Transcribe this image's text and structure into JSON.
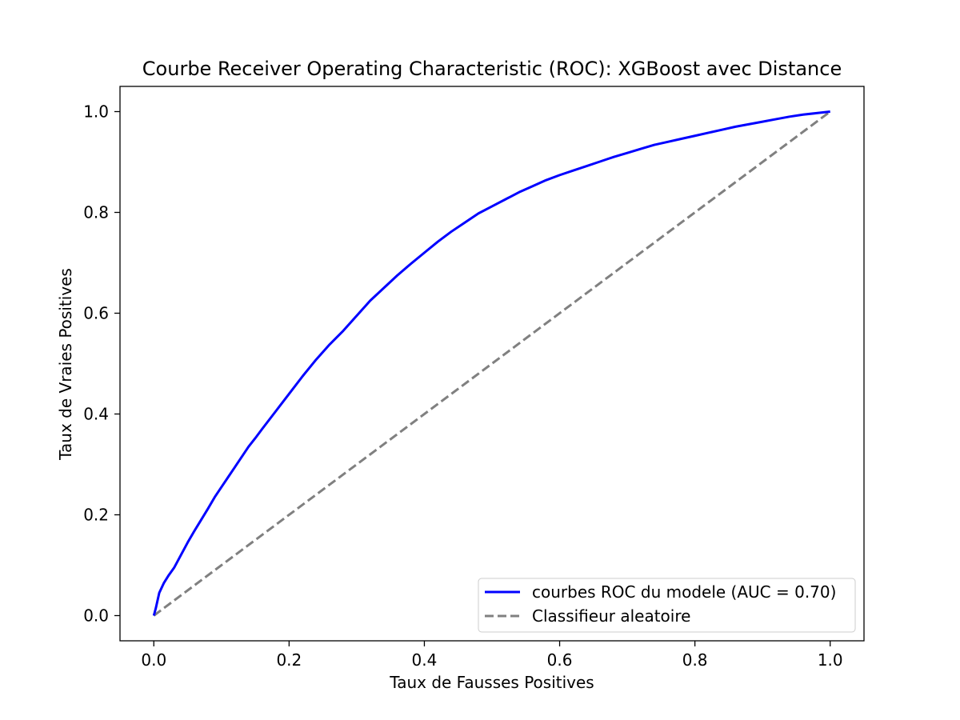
{
  "chart_data": {
    "type": "line",
    "title": "Courbe Receiver Operating Characteristic (ROC): XGBoost avec Distance",
    "xlabel": "Taux de Fausses Positives",
    "ylabel": "Taux de Vraies Positives",
    "xlim": [
      -0.05,
      1.05
    ],
    "ylim": [
      -0.05,
      1.05
    ],
    "xticks": [
      0.0,
      0.2,
      0.4,
      0.6,
      0.8,
      1.0
    ],
    "yticks": [
      0.0,
      0.2,
      0.4,
      0.6,
      0.8,
      1.0
    ],
    "xtick_labels": [
      "0.0",
      "0.2",
      "0.4",
      "0.6",
      "0.8",
      "1.0"
    ],
    "ytick_labels": [
      "0.0",
      "0.2",
      "0.4",
      "0.6",
      "0.8",
      "1.0"
    ],
    "grid": false,
    "legend": "lower right",
    "series": [
      {
        "name": "courbes ROC du modele (AUC = 0.70)",
        "color": "#0000ff",
        "style": "solid",
        "x": [
          0.0,
          0.003,
          0.008,
          0.015,
          0.022,
          0.03,
          0.04,
          0.05,
          0.06,
          0.07,
          0.08,
          0.09,
          0.1,
          0.11,
          0.12,
          0.13,
          0.14,
          0.15,
          0.16,
          0.18,
          0.2,
          0.22,
          0.24,
          0.26,
          0.28,
          0.3,
          0.32,
          0.34,
          0.36,
          0.38,
          0.4,
          0.42,
          0.44,
          0.46,
          0.48,
          0.5,
          0.52,
          0.54,
          0.56,
          0.58,
          0.6,
          0.62,
          0.64,
          0.66,
          0.68,
          0.7,
          0.72,
          0.74,
          0.76,
          0.78,
          0.8,
          0.82,
          0.84,
          0.86,
          0.88,
          0.9,
          0.92,
          0.94,
          0.96,
          0.98,
          1.0
        ],
        "y": [
          0.0,
          0.015,
          0.045,
          0.065,
          0.08,
          0.095,
          0.12,
          0.145,
          0.168,
          0.19,
          0.212,
          0.235,
          0.255,
          0.275,
          0.295,
          0.315,
          0.335,
          0.352,
          0.37,
          0.405,
          0.44,
          0.475,
          0.508,
          0.538,
          0.565,
          0.595,
          0.625,
          0.65,
          0.675,
          0.698,
          0.72,
          0.742,
          0.762,
          0.78,
          0.798,
          0.812,
          0.826,
          0.84,
          0.852,
          0.864,
          0.874,
          0.883,
          0.892,
          0.901,
          0.91,
          0.918,
          0.926,
          0.934,
          0.94,
          0.946,
          0.952,
          0.958,
          0.964,
          0.97,
          0.975,
          0.98,
          0.985,
          0.99,
          0.994,
          0.997,
          1.0
        ]
      },
      {
        "name": "Classifieur aleatoire",
        "color": "#808080",
        "style": "dashed",
        "x": [
          0.0,
          1.0
        ],
        "y": [
          0.0,
          1.0
        ]
      }
    ]
  }
}
